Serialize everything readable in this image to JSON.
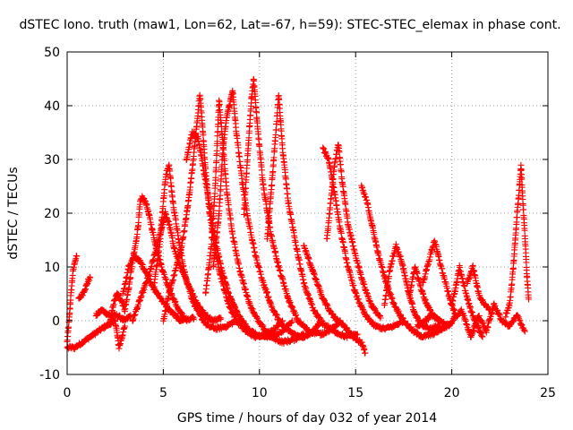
{
  "chart_data": {
    "type": "scatter",
    "title": "dSTEC Iono. truth (maw1, Lon=62, Lat=-67, h=59): STEC-STEC_elemax in phase cont.",
    "xlabel": "GPS time / hours of day 032 of year 2014",
    "ylabel": "dSTEC  / TECUs",
    "xlim": [
      0,
      25
    ],
    "ylim": [
      -10,
      50
    ],
    "xticks": [
      "0",
      "5",
      "10",
      "15",
      "20",
      "25"
    ],
    "yticks": [
      "-10",
      "0",
      "10",
      "20",
      "30",
      "40",
      "50"
    ],
    "grid": true,
    "marker": "+",
    "colors": {
      "series": "#ff0000",
      "grid": "#a0a0a0",
      "axis": "#000000"
    },
    "series": [
      {
        "tracks": [
          [
            [
              0.0,
              -4
            ],
            [
              0.1,
              0
            ],
            [
              0.2,
              5
            ],
            [
              0.3,
              9
            ],
            [
              0.4,
              11
            ],
            [
              0.5,
              12
            ]
          ],
          [
            [
              0.0,
              -5
            ],
            [
              0.4,
              -5
            ],
            [
              0.8,
              -4
            ],
            [
              1.2,
              -3
            ],
            [
              1.6,
              -2
            ],
            [
              2.0,
              -1
            ],
            [
              2.5,
              0
            ],
            [
              2.7,
              -5
            ],
            [
              3.0,
              -1
            ]
          ],
          [
            [
              0.6,
              4
            ],
            [
              0.8,
              5
            ],
            [
              1.0,
              6.5
            ],
            [
              1.1,
              7.5
            ],
            [
              1.2,
              8
            ]
          ],
          [
            [
              1.5,
              1
            ],
            [
              1.8,
              2
            ],
            [
              2.2,
              1
            ],
            [
              2.6,
              1
            ],
            [
              3.0,
              0
            ],
            [
              3.3,
              1
            ]
          ],
          [
            [
              2.2,
              -1
            ],
            [
              2.4,
              3
            ],
            [
              2.6,
              5
            ],
            [
              2.8,
              4
            ],
            [
              3.0,
              2
            ],
            [
              3.2,
              6
            ],
            [
              3.4,
              11
            ],
            [
              3.6,
              15
            ],
            [
              3.7,
              18
            ],
            [
              3.8,
              22
            ],
            [
              3.9,
              23
            ],
            [
              4.1,
              22
            ],
            [
              4.3,
              19
            ],
            [
              4.6,
              14
            ],
            [
              5.0,
              9
            ],
            [
              5.4,
              5
            ],
            [
              5.8,
              2
            ],
            [
              6.2,
              0
            ],
            [
              6.6,
              0.5
            ]
          ],
          [
            [
              2.9,
              5
            ],
            [
              3.2,
              10
            ],
            [
              3.5,
              12
            ],
            [
              3.8,
              11
            ],
            [
              4.1,
              9
            ],
            [
              4.5,
              6
            ],
            [
              4.9,
              4
            ],
            [
              5.3,
              2
            ],
            [
              5.6,
              1
            ],
            [
              5.9,
              0
            ],
            [
              6.2,
              0.5
            ]
          ],
          [
            [
              3.4,
              0
            ],
            [
              3.7,
              3
            ],
            [
              4.0,
              6
            ],
            [
              4.3,
              9
            ],
            [
              4.6,
              13
            ],
            [
              4.9,
              17
            ],
            [
              5.1,
              20
            ],
            [
              5.3,
              18
            ],
            [
              5.6,
              13
            ],
            [
              6.0,
              9
            ],
            [
              6.4,
              6
            ],
            [
              6.8,
              3
            ],
            [
              7.2,
              1
            ],
            [
              7.6,
              0
            ],
            [
              8.0,
              0.5
            ]
          ],
          [
            [
              4.5,
              6
            ],
            [
              4.8,
              14
            ],
            [
              5.0,
              22
            ],
            [
              5.1,
              26
            ],
            [
              5.2,
              28
            ],
            [
              5.3,
              29
            ],
            [
              5.5,
              22
            ],
            [
              5.8,
              15
            ],
            [
              6.1,
              9
            ],
            [
              6.5,
              4
            ],
            [
              6.9,
              1
            ],
            [
              7.3,
              -1
            ],
            [
              7.8,
              -1.5
            ],
            [
              8.3,
              -1
            ],
            [
              8.8,
              0
            ]
          ],
          [
            [
              5.0,
              0
            ],
            [
              5.3,
              5
            ],
            [
              5.6,
              9
            ],
            [
              5.9,
              13
            ],
            [
              6.1,
              17
            ],
            [
              6.3,
              22
            ],
            [
              6.5,
              28
            ],
            [
              6.7,
              35
            ],
            [
              6.9,
              42
            ],
            [
              7.0,
              38
            ],
            [
              7.2,
              28
            ],
            [
              7.4,
              20
            ],
            [
              7.7,
              13
            ],
            [
              8.0,
              8
            ],
            [
              8.4,
              3
            ],
            [
              8.8,
              0
            ],
            [
              9.3,
              -2
            ],
            [
              9.8,
              -3
            ],
            [
              10.3,
              -2.5
            ],
            [
              10.8,
              -1.5
            ],
            [
              11.2,
              0
            ]
          ],
          [
            [
              6.2,
              30
            ],
            [
              6.5,
              35
            ],
            [
              6.8,
              34
            ],
            [
              7.0,
              30
            ],
            [
              7.3,
              24
            ],
            [
              7.6,
              17
            ],
            [
              8.0,
              10
            ],
            [
              8.4,
              5
            ],
            [
              8.9,
              1
            ],
            [
              9.4,
              -1.5
            ],
            [
              10.0,
              -3
            ],
            [
              10.6,
              -3
            ],
            [
              11.2,
              -2
            ],
            [
              11.7,
              0
            ]
          ],
          [
            [
              7.2,
              5
            ],
            [
              7.5,
              14
            ],
            [
              7.7,
              25
            ],
            [
              7.9,
              41
            ],
            [
              8.1,
              33
            ],
            [
              8.3,
              24
            ],
            [
              8.6,
              16
            ],
            [
              9.0,
              9
            ],
            [
              9.5,
              3
            ],
            [
              10.0,
              -0.5
            ],
            [
              10.6,
              -3
            ],
            [
              11.2,
              -4
            ],
            [
              11.8,
              -3.5
            ],
            [
              12.3,
              -2.5
            ]
          ],
          [
            [
              7.6,
              10
            ],
            [
              7.9,
              20
            ],
            [
              8.1,
              32
            ],
            [
              8.3,
              38
            ],
            [
              8.5,
              41
            ],
            [
              8.6,
              43
            ],
            [
              8.8,
              35
            ],
            [
              9.1,
              26
            ],
            [
              9.4,
              19
            ],
            [
              9.8,
              12
            ],
            [
              10.2,
              7
            ],
            [
              10.7,
              2
            ],
            [
              11.2,
              -1
            ],
            [
              11.8,
              -2.5
            ],
            [
              12.3,
              -3
            ],
            [
              12.8,
              -2
            ],
            [
              13.2,
              0
            ]
          ],
          [
            [
              9.2,
              20
            ],
            [
              9.5,
              37
            ],
            [
              9.6,
              42
            ],
            [
              9.7,
              45
            ],
            [
              9.9,
              36
            ],
            [
              10.2,
              25
            ],
            [
              10.6,
              16
            ],
            [
              11.0,
              10
            ],
            [
              11.5,
              4
            ],
            [
              12.0,
              0
            ],
            [
              12.6,
              -2
            ],
            [
              13.2,
              -2.5
            ],
            [
              13.8,
              -1.5
            ],
            [
              14.2,
              0
            ]
          ],
          [
            [
              10.4,
              15
            ],
            [
              10.7,
              28
            ],
            [
              11.0,
              42
            ],
            [
              11.2,
              32
            ],
            [
              11.5,
              22
            ],
            [
              11.9,
              14
            ],
            [
              12.3,
              7
            ],
            [
              12.8,
              2
            ],
            [
              13.3,
              -0.5
            ],
            [
              13.9,
              -2
            ],
            [
              14.5,
              -3
            ],
            [
              15.1,
              -2.5
            ]
          ],
          [
            [
              12.3,
              14
            ],
            [
              12.8,
              9
            ],
            [
              13.3,
              4
            ],
            [
              13.8,
              1
            ],
            [
              14.4,
              -1
            ],
            [
              15.0,
              -3.5
            ],
            [
              15.3,
              -4
            ],
            [
              15.5,
              -6
            ]
          ],
          [
            [
              13.3,
              32
            ],
            [
              13.6,
              30
            ],
            [
              13.9,
              24
            ],
            [
              14.2,
              17
            ],
            [
              14.6,
              10
            ],
            [
              15.0,
              5
            ],
            [
              15.5,
              1
            ],
            [
              16.0,
              -1
            ],
            [
              16.5,
              -1.5
            ],
            [
              17.0,
              -1
            ],
            [
              17.5,
              0
            ]
          ],
          [
            [
              13.5,
              15
            ],
            [
              13.9,
              29
            ],
            [
              14.1,
              33
            ],
            [
              14.3,
              26
            ],
            [
              14.6,
              18
            ],
            [
              15.0,
              12
            ],
            [
              15.4,
              7
            ],
            [
              15.8,
              3
            ],
            [
              16.3,
              0.5
            ]
          ],
          [
            [
              15.3,
              25
            ],
            [
              15.6,
              22
            ],
            [
              15.9,
              17
            ],
            [
              16.2,
              12
            ],
            [
              16.6,
              7
            ],
            [
              17.0,
              3
            ],
            [
              17.5,
              0
            ],
            [
              18.0,
              -2
            ],
            [
              18.5,
              -3
            ],
            [
              19.0,
              -2.5
            ],
            [
              19.5,
              -1.5
            ],
            [
              20.0,
              -0.5
            ]
          ],
          [
            [
              16.5,
              3
            ],
            [
              16.8,
              10
            ],
            [
              17.1,
              14
            ],
            [
              17.4,
              11
            ],
            [
              17.7,
              6
            ],
            [
              18.1,
              1
            ],
            [
              18.5,
              -1
            ],
            [
              18.9,
              -1.5
            ],
            [
              19.3,
              -1
            ]
          ],
          [
            [
              17.8,
              5
            ],
            [
              18.1,
              10
            ],
            [
              18.4,
              6
            ],
            [
              18.7,
              3
            ],
            [
              19.0,
              1
            ],
            [
              19.4,
              0
            ]
          ],
          [
            [
              18.5,
              7
            ],
            [
              18.8,
              11
            ],
            [
              19.1,
              15
            ],
            [
              19.3,
              12
            ],
            [
              19.6,
              8
            ],
            [
              19.9,
              4
            ],
            [
              20.2,
              1
            ]
          ],
          [
            [
              18.2,
              -1
            ],
            [
              19.0,
              1
            ],
            [
              19.8,
              -1
            ],
            [
              20.5,
              2
            ],
            [
              21.0,
              -3
            ],
            [
              21.4,
              1
            ],
            [
              21.8,
              -2
            ],
            [
              22.2,
              3
            ],
            [
              22.6,
              0
            ],
            [
              23.0,
              -1
            ],
            [
              23.4,
              1
            ],
            [
              23.8,
              -2
            ]
          ],
          [
            [
              20.0,
              3
            ],
            [
              20.2,
              6
            ],
            [
              20.4,
              10
            ],
            [
              20.6,
              7
            ],
            [
              20.9,
              3
            ],
            [
              21.2,
              0
            ],
            [
              21.6,
              -3
            ]
          ],
          [
            [
              20.8,
              7
            ],
            [
              21.1,
              10
            ],
            [
              21.4,
              5
            ],
            [
              21.7,
              3
            ],
            [
              22.0,
              2
            ]
          ],
          [
            [
              22.8,
              1
            ],
            [
              23.0,
              3
            ],
            [
              23.1,
              6
            ],
            [
              23.2,
              10
            ],
            [
              23.3,
              15
            ],
            [
              23.4,
              20
            ],
            [
              23.5,
              24
            ],
            [
              23.6,
              29
            ],
            [
              23.7,
              22
            ],
            [
              23.8,
              16
            ],
            [
              23.9,
              9
            ],
            [
              24.0,
              4
            ]
          ]
        ]
      }
    ]
  }
}
